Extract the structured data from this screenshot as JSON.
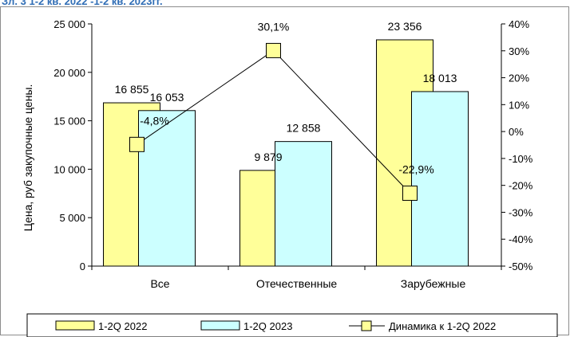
{
  "header": {
    "cut_title": "Зл. 3 1-2 кв. 2022 -1-2 кв. 2023гг."
  },
  "chart_data": {
    "type": "bar",
    "categories": [
      "Все",
      "Отечественные",
      "Зарубежные"
    ],
    "series": [
      {
        "name": "1-2Q 2022",
        "values": [
          16855,
          9879,
          23356
        ],
        "labels": [
          "16 855",
          "9 879",
          "23 356"
        ],
        "color": "#ffff99",
        "axis": "left"
      },
      {
        "name": "1-2Q 2023",
        "values": [
          16053,
          12858,
          18013
        ],
        "labels": [
          "16 053",
          "12 858",
          "18 013"
        ],
        "color": "#ccffff",
        "axis": "left"
      },
      {
        "name": "Динамика к 1-2Q 2022",
        "type": "line",
        "values": [
          -4.8,
          30.1,
          -22.9
        ],
        "labels": [
          "-4,8%",
          "30,1%",
          "-22,9%"
        ],
        "color": "#000000",
        "marker_color": "#ffff99",
        "axis": "right"
      }
    ],
    "ylabel": "Цена, руб закупочные цены.",
    "ylim": [
      0,
      25000
    ],
    "yticks": [
      {
        "value": 0,
        "label": "0"
      },
      {
        "value": 5000,
        "label": "5 000"
      },
      {
        "value": 10000,
        "label": "10 000"
      },
      {
        "value": 15000,
        "label": "15 000"
      },
      {
        "value": 20000,
        "label": "20 000"
      },
      {
        "value": 25000,
        "label": "25 000"
      }
    ],
    "y2lim": [
      -50,
      40
    ],
    "y2ticks": [
      {
        "value": -50,
        "label": "-50%"
      },
      {
        "value": -40,
        "label": "-40%"
      },
      {
        "value": -30,
        "label": "-30%"
      },
      {
        "value": -20,
        "label": "-20%"
      },
      {
        "value": -10,
        "label": "-10%"
      },
      {
        "value": 0,
        "label": "0%"
      },
      {
        "value": 10,
        "label": "10%"
      },
      {
        "value": 20,
        "label": "20%"
      },
      {
        "value": 30,
        "label": "30%"
      },
      {
        "value": 40,
        "label": "40%"
      }
    ],
    "grid": false,
    "legend": "bottom"
  }
}
